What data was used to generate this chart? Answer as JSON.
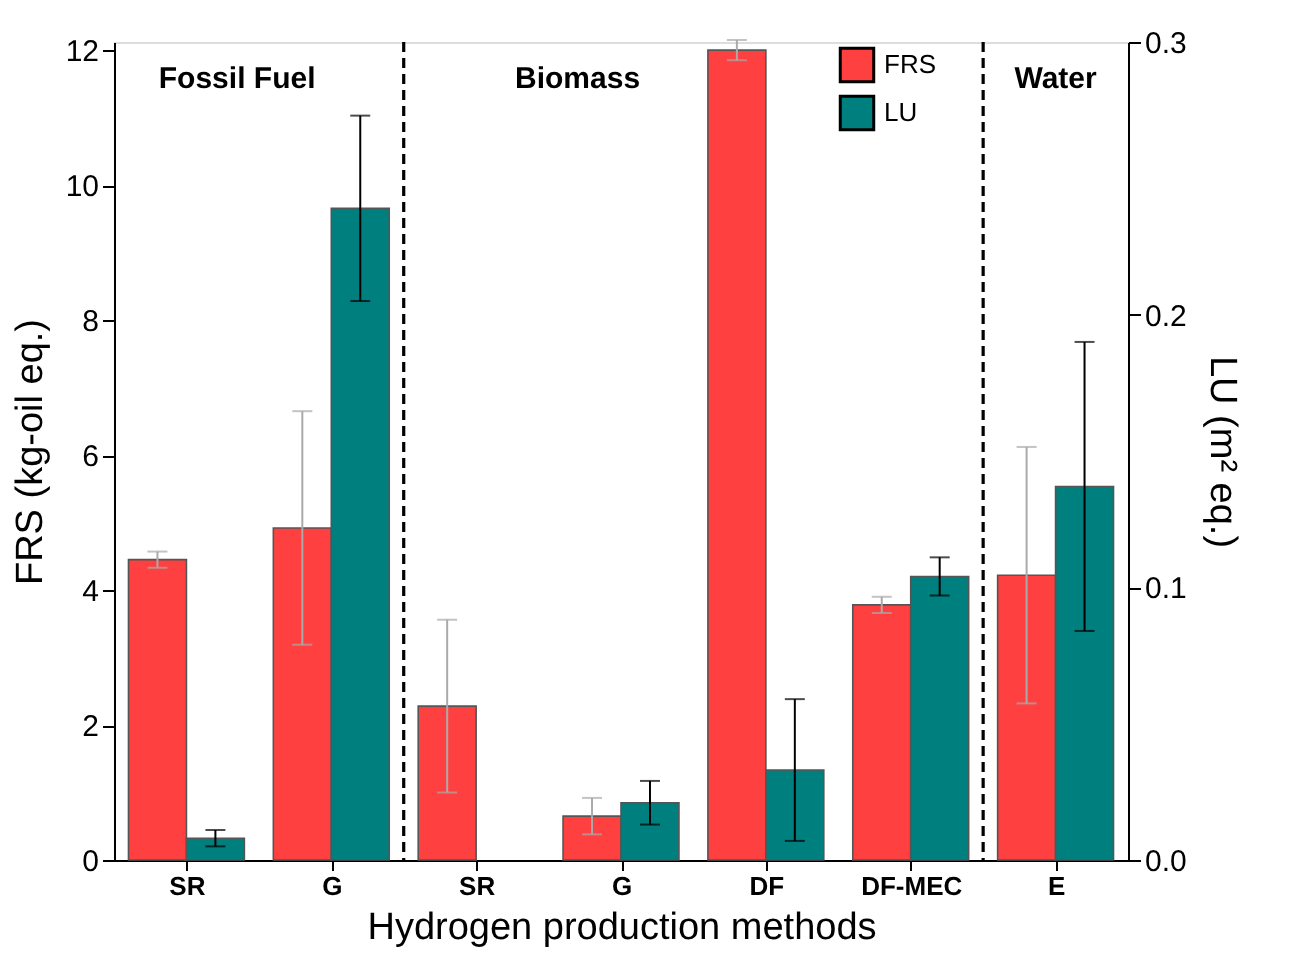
{
  "chart_data": {
    "type": "bar",
    "xlabel": "Hydrogen production methods",
    "ylabel": "FRS (kg-oil eq.)",
    "y2label": "LU (m² eq.)",
    "categories": [
      "SR",
      "G",
      "SR",
      "G",
      "DF",
      "DF-MEC",
      "E"
    ],
    "series": [
      {
        "name": "FRS",
        "color": "#ff4040",
        "values": [
          4.45,
          4.92,
          2.28,
          0.65,
          12.0,
          3.78,
          4.22
        ],
        "errors": [
          0.12,
          1.73,
          1.28,
          0.27,
          0.15,
          0.12,
          1.9
        ]
      },
      {
        "name": "LU",
        "color": "#007f7f",
        "axis": "y2",
        "values": [
          0.008,
          0.239,
          null,
          0.021,
          0.033,
          0.104,
          0.137
        ],
        "errors": [
          0.003,
          0.034,
          null,
          0.008,
          0.026,
          0.007,
          0.053
        ]
      }
    ],
    "ylim": [
      0,
      12.12
    ],
    "yticks": [
      0,
      2,
      4,
      6,
      8,
      10,
      12
    ],
    "y2lim": [
      0,
      0.3
    ],
    "y2ticks": [
      {
        "value": 0,
        "label": "0.0"
      },
      0.1,
      0.2,
      0.3
    ],
    "annotations": [
      "Fossil Fuel",
      "Biomass",
      "Water"
    ],
    "grid": false,
    "legend": "top right"
  }
}
